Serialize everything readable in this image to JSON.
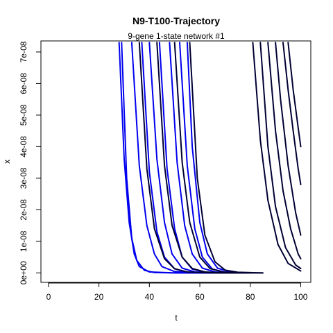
{
  "chart_data": {
    "type": "line",
    "title": "N9-T100-Trajectory",
    "subtitle": "9-gene 1-state network #1",
    "xlabel": "t",
    "ylabel": "x",
    "xlim": [
      -3,
      104
    ],
    "ylim": [
      -3e-09,
      7.35e-08
    ],
    "x_ticks": [
      0,
      20,
      40,
      60,
      80,
      100
    ],
    "x_tick_labels": [
      "0",
      "20",
      "40",
      "60",
      "80",
      "100"
    ],
    "y_ticks": [
      0,
      1e-08,
      2e-08,
      3e-08,
      4e-08,
      5e-08,
      6e-08,
      7e-08
    ],
    "y_tick_labels": [
      "0e+00",
      "1e-08",
      "2e-08",
      "3e-08",
      "4e-08",
      "5e-08",
      "6e-08",
      "7e-08"
    ],
    "grid": false,
    "colors": {
      "dark_series": "#000033",
      "blue_series": "#0000ee"
    },
    "series": [
      {
        "values_description": "",
        "color": "#0000ee",
        "curves": [
          {
            "x": [
              28.0,
              30.0,
              32.0,
              34.0,
              36.0,
              40.0,
              50.0,
              60.0,
              70.0
            ],
            "y": [
              7.3e-08,
              3.6e-08,
              1.6e-08,
              6e-09,
              2e-09,
              3e-10,
              0,
              0,
              0
            ]
          },
          {
            "x": [
              29.0,
              31.0,
              33.0,
              35.0,
              38.0,
              42.0,
              50.0,
              70.0
            ],
            "y": [
              7.3e-08,
              3e-08,
              1.1e-08,
              4e-09,
              8e-10,
              1e-10,
              0,
              0
            ]
          },
          {
            "x": [
              33.0,
              36.0,
              39.0,
              42.0,
              45.0,
              50.0,
              60.0,
              70.0
            ],
            "y": [
              7.3e-08,
              3.4e-08,
              1.5e-08,
              6e-09,
              2e-09,
              4e-10,
              0,
              0
            ]
          },
          {
            "x": [
              37.0,
              40.0,
              43.0,
              46.0,
              50.0,
              55.0,
              65.0
            ],
            "y": [
              7.3e-08,
              3.2e-08,
              1.3e-08,
              5e-09,
              1.3e-09,
              2e-10,
              0
            ]
          },
          {
            "x": [
              40.0,
              43.0,
              46.0,
              49.0,
              53.0,
              58.0,
              68.0
            ],
            "y": [
              7.3e-08,
              3.6e-08,
              1.6e-08,
              6e-09,
              1.5e-09,
              3e-10,
              0
            ]
          },
          {
            "x": [
              44.0,
              47.0,
              50.0,
              53.0,
              57.0,
              62.0,
              70.0
            ],
            "y": [
              7.3e-08,
              3.3e-08,
              1.4e-08,
              5e-09,
              1.2e-09,
              2e-10,
              0
            ]
          },
          {
            "x": [
              48.0,
              51.0,
              54.0,
              57.0,
              61.0,
              66.0,
              72.0
            ],
            "y": [
              7.3e-08,
              3.5e-08,
              1.5e-08,
              6e-09,
              1.5e-09,
              3e-10,
              0
            ]
          },
          {
            "x": [
              52.0,
              55.0,
              58.0,
              61.0,
              65.0,
              70.0,
              75.0
            ],
            "y": [
              7.3e-08,
              3.4e-08,
              1.4e-08,
              5e-09,
              1.2e-09,
              2e-10,
              0
            ]
          },
          {
            "x": [
              55.0,
              57.0,
              60.0,
              63.0,
              67.0,
              72.0,
              78.0
            ],
            "y": [
              7.3e-08,
              4e-08,
              1.6e-08,
              6e-09,
              1.5e-09,
              3e-10,
              0
            ]
          }
        ]
      },
      {
        "values_description": "",
        "color": "#000033",
        "curves": [
          {
            "x": [
              36.0,
              39.0,
              42.0,
              46.0,
              50.0,
              55.0,
              65.0,
              75.0
            ],
            "y": [
              7.3e-08,
              3.3e-08,
              1.4e-08,
              4.5e-09,
              1.3e-09,
              3e-10,
              0,
              0
            ]
          },
          {
            "x": [
              43.0,
              46.0,
              49.0,
              53.0,
              57.0,
              62.0,
              70.0,
              80.0
            ],
            "y": [
              7.3e-08,
              3.4e-08,
              1.5e-08,
              5e-09,
              1.4e-09,
              3e-10,
              0,
              0
            ]
          },
          {
            "x": [
              50.0,
              53.0,
              56.0,
              60.0,
              64.0,
              69.0,
              75.0,
              85.0
            ],
            "y": [
              7.3e-08,
              3.5e-08,
              1.6e-08,
              5e-09,
              1.4e-09,
              3e-10,
              0,
              0
            ]
          },
          {
            "x": [
              56.0,
              59.0,
              62.0,
              66.0,
              70.0,
              75.0,
              85.0
            ],
            "y": [
              7.3e-08,
              3e-08,
              1.2e-08,
              3.5e-09,
              9e-10,
              2e-10,
              0
            ]
          },
          {
            "x": [
              81.0,
              84.0,
              87.0,
              91.0,
              95.0,
              100.0
            ],
            "y": [
              7.3e-08,
              4.2e-08,
              2.3e-08,
              9e-09,
              3e-09,
              6e-10
            ]
          },
          {
            "x": [
              84.0,
              87.0,
              90.0,
              94.0,
              98.0,
              100.0
            ],
            "y": [
              7.3e-08,
              4e-08,
              2.1e-08,
              8e-09,
              2.5e-09,
              1.4e-09
            ]
          },
          {
            "x": [
              87.0,
              90.0,
              93.0,
              96.0,
              99.0,
              100.0
            ],
            "y": [
              7.3e-08,
              4.5e-08,
              2.6e-08,
              1.4e-08,
              6e-09,
              4.5e-09
            ]
          },
          {
            "x": [
              90.0,
              92.0,
              95.0,
              98.0,
              100.0
            ],
            "y": [
              7.3e-08,
              5.5e-08,
              3.4e-08,
              1.9e-08,
              1.2e-08
            ]
          },
          {
            "x": [
              93.0,
              95.0,
              97.0,
              99.0,
              100.0
            ],
            "y": [
              7.3e-08,
              5.8e-08,
              4.5e-08,
              3.3e-08,
              2.8e-08
            ]
          },
          {
            "x": [
              95.0,
              97.0,
              99.0,
              100.0
            ],
            "y": [
              7.3e-08,
              5.8e-08,
              4.6e-08,
              4e-08
            ]
          }
        ]
      }
    ]
  }
}
